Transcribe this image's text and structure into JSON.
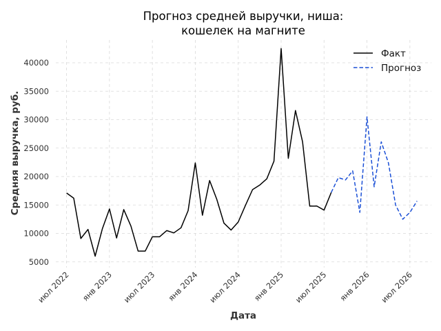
{
  "chart_data": {
    "type": "line",
    "title": "Прогноз средней выручки, ниша:",
    "title_line2": "кошелек на магните",
    "xlabel": "Дата",
    "ylabel": "Средняя выручка, руб.",
    "ylim": [
      4000,
      44000
    ],
    "yticks": [
      5000,
      10000,
      15000,
      20000,
      25000,
      30000,
      35000,
      40000
    ],
    "xlim": [
      -1.5,
      51
    ],
    "xticks": [
      {
        "x": 0,
        "label": "июл 2022"
      },
      {
        "x": 6,
        "label": "янв 2023"
      },
      {
        "x": 12,
        "label": "июл 2023"
      },
      {
        "x": 18,
        "label": "янв 2024"
      },
      {
        "x": 24,
        "label": "июл 2024"
      },
      {
        "x": 30,
        "label": "янв 2025"
      },
      {
        "x": 36,
        "label": "июл 2025"
      },
      {
        "x": 42,
        "label": "янв 2026"
      },
      {
        "x": 48,
        "label": "июл 2026"
      }
    ],
    "grid": true,
    "legend_position": "top-right",
    "series": [
      {
        "name": "Факт",
        "color": "#000000",
        "style": "solid",
        "points": [
          [
            0,
            17100
          ],
          [
            1,
            16200
          ],
          [
            2,
            9100
          ],
          [
            3,
            10700
          ],
          [
            4,
            6000
          ],
          [
            5,
            10800
          ],
          [
            6,
            14300
          ],
          [
            7,
            9200
          ],
          [
            8,
            14200
          ],
          [
            9,
            11300
          ],
          [
            10,
            6900
          ],
          [
            11,
            6900
          ],
          [
            12,
            9400
          ],
          [
            13,
            9400
          ],
          [
            14,
            10500
          ],
          [
            15,
            10100
          ],
          [
            16,
            11000
          ],
          [
            17,
            14000
          ],
          [
            18,
            22400
          ],
          [
            19,
            13200
          ],
          [
            20,
            19300
          ],
          [
            21,
            16000
          ],
          [
            22,
            11800
          ],
          [
            23,
            10600
          ],
          [
            24,
            12000
          ],
          [
            25,
            14900
          ],
          [
            26,
            17700
          ],
          [
            27,
            18500
          ],
          [
            28,
            19600
          ],
          [
            29,
            22700
          ],
          [
            30,
            42500
          ],
          [
            31,
            23200
          ],
          [
            32,
            31600
          ],
          [
            33,
            26100
          ],
          [
            34,
            14800
          ],
          [
            35,
            14800
          ],
          [
            36,
            14100
          ],
          [
            37,
            17200
          ]
        ]
      },
      {
        "name": "Прогноз",
        "color": "#1a4fd6",
        "style": "dashed",
        "points": [
          [
            37,
            17200
          ],
          [
            38,
            19800
          ],
          [
            39,
            19400
          ],
          [
            40,
            21000
          ],
          [
            41,
            13700
          ],
          [
            42,
            30500
          ],
          [
            43,
            18200
          ],
          [
            44,
            26100
          ],
          [
            45,
            22400
          ],
          [
            46,
            15000
          ],
          [
            47,
            12500
          ],
          [
            48,
            13700
          ],
          [
            49,
            15700
          ]
        ]
      }
    ]
  }
}
